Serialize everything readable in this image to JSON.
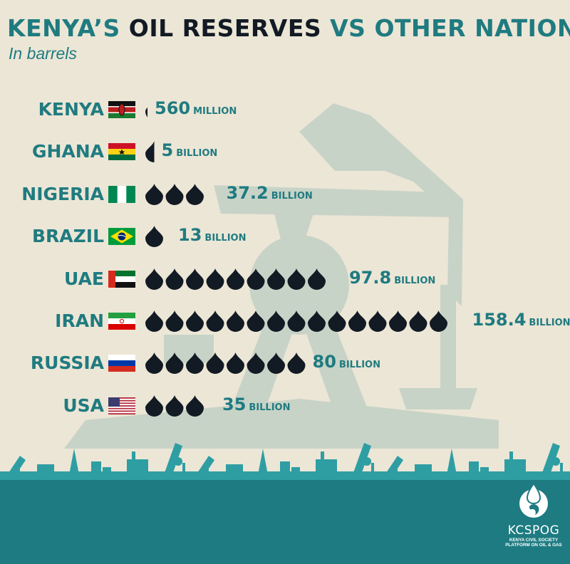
{
  "title": {
    "before": "KENYA’S ",
    "accent": "OIL RESERVES",
    "after": " VS OTHER NATIONS"
  },
  "subtitle": "In barrels",
  "colors": {
    "teal": "#1f7b80",
    "drop": "#121a24",
    "background": "#ece6d6",
    "silhouette": "#c8d3c7",
    "footer": "#1d7b81",
    "footer_icons": "#2e9ea3"
  },
  "chart_data": {
    "type": "bar",
    "title": "KENYA’S OIL RESERVES VS OTHER NATIONS",
    "subtitle": "In barrels",
    "unit_per_icon_billion": 10,
    "icon": "oil-drop-icon",
    "categories": [
      "KENYA",
      "GHANA",
      "NIGERIA",
      "BRAZIL",
      "UAE",
      "IRAN",
      "RUSSIA",
      "USA"
    ],
    "values_billion": [
      0.56,
      5,
      37.2,
      13,
      97.8,
      158.4,
      80,
      35
    ],
    "labels": [
      {
        "number": "560",
        "unit": "MILLION"
      },
      {
        "number": "5",
        "unit": "BILLION"
      },
      {
        "number": "37.2",
        "unit": "BILLION"
      },
      {
        "number": "13",
        "unit": "BILLION"
      },
      {
        "number": "97.8",
        "unit": "BILLION"
      },
      {
        "number": "158.4",
        "unit": "BILLION"
      },
      {
        "number": "80",
        "unit": "BILLION"
      },
      {
        "number": "35",
        "unit": "BILLION"
      }
    ],
    "flags": [
      "kenya-flag",
      "ghana-flag",
      "nigeria-flag",
      "brazil-flag",
      "uae-flag",
      "iran-flag",
      "russia-flag",
      "usa-flag"
    ]
  },
  "logo": {
    "name": "KCSPOG",
    "line1": "KENYA CIVIL SOCIETY",
    "line2": "PLATFORM ON OIL & GAS"
  }
}
